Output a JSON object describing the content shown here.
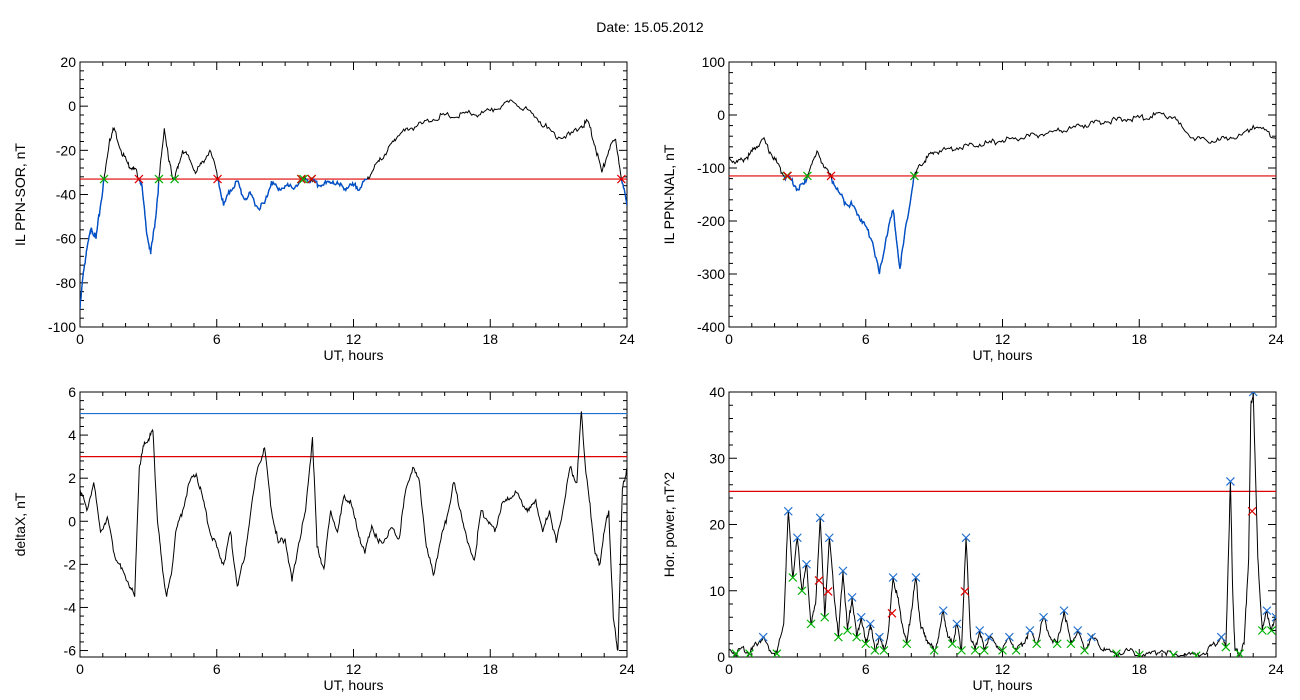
{
  "header": {
    "title": "Date:  15.05.2012"
  },
  "colors": {
    "trace": "#000000",
    "highlight": "#0050c8",
    "threshold_red": "#e00000",
    "threshold_blue": "#1f6fd0",
    "marker_green": "#00b000",
    "marker_red": "#e00000",
    "marker_blue": "#1f6fd0"
  },
  "chart_data": [
    {
      "type": "line",
      "xlabel": "UT, hours",
      "ylabel": "IL PPN-SOR, nT",
      "xlim": [
        0,
        24
      ],
      "ylim": [
        -100,
        20
      ],
      "xticks": [
        0,
        6,
        12,
        18,
        24
      ],
      "yticks": [
        -100,
        -80,
        -60,
        -40,
        -20,
        0,
        20
      ],
      "thresholds": [
        {
          "value": -33,
          "color": "red"
        }
      ],
      "series": [
        {
          "x": [
            0,
            0.15,
            0.3,
            0.5,
            0.7,
            0.9,
            1.1,
            1.3,
            1.5,
            1.8,
            2.1,
            2.3,
            2.5,
            2.7,
            2.9,
            3.1,
            3.3,
            3.5,
            3.7,
            3.9,
            4.1,
            4.3,
            4.5,
            4.8,
            5.1,
            5.4,
            5.7,
            6.0,
            6.3,
            6.6,
            6.9,
            7.2,
            7.5,
            7.8,
            8.1,
            8.4,
            8.7,
            9.0,
            9.3,
            9.6,
            9.9,
            10.2,
            10.5,
            10.8,
            11.1,
            11.4,
            11.7,
            12.0,
            12.3,
            12.6,
            12.9,
            13.2,
            13.5,
            13.8,
            14.1,
            14.5,
            15.0,
            15.5,
            16.0,
            16.5,
            17.0,
            17.5,
            18.0,
            18.5,
            19.0,
            19.5,
            20.0,
            20.5,
            21.0,
            21.5,
            22.0,
            22.3,
            22.6,
            22.9,
            23.2,
            23.5,
            23.8,
            24.0
          ],
          "y": [
            -92,
            -75,
            -65,
            -55,
            -60,
            -45,
            -30,
            -15,
            -10,
            -20,
            -26,
            -28,
            -30,
            -35,
            -55,
            -67,
            -52,
            -30,
            -10,
            -25,
            -33,
            -28,
            -20,
            -24,
            -30,
            -25,
            -20,
            -30,
            -45,
            -38,
            -34,
            -42,
            -40,
            -46,
            -44,
            -34,
            -38,
            -36,
            -37,
            -35,
            -33,
            -34,
            -36,
            -35,
            -34,
            -36,
            -37,
            -36,
            -37,
            -33,
            -28,
            -24,
            -20,
            -15,
            -12,
            -10,
            -8,
            -6,
            -4,
            -5,
            -3,
            -4,
            -2,
            0,
            2,
            -1,
            -5,
            -10,
            -14,
            -13,
            -9,
            -7,
            -18,
            -30,
            -20,
            -15,
            -35,
            -45
          ]
        }
      ]
    },
    {
      "type": "line",
      "xlabel": "UT, hours",
      "ylabel": "IL PPN-NAL, nT",
      "xlim": [
        0,
        24
      ],
      "ylim": [
        -400,
        100
      ],
      "xticks": [
        0,
        6,
        12,
        18,
        24
      ],
      "yticks": [
        -400,
        -300,
        -200,
        -100,
        0,
        100
      ],
      "thresholds": [
        {
          "value": -115,
          "color": "red"
        }
      ],
      "series": [
        {
          "x": [
            0,
            0.3,
            0.6,
            0.9,
            1.2,
            1.5,
            1.8,
            2.1,
            2.4,
            2.7,
            3.0,
            3.3,
            3.6,
            3.9,
            4.2,
            4.5,
            4.8,
            5.1,
            5.4,
            5.7,
            6.0,
            6.3,
            6.6,
            6.9,
            7.2,
            7.5,
            7.8,
            8.1,
            8.4,
            8.7,
            9.0,
            9.5,
            10.0,
            10.5,
            11.0,
            11.5,
            12.0,
            12.5,
            13.0,
            13.5,
            14.0,
            14.5,
            15.0,
            15.5,
            16.0,
            16.5,
            17.0,
            17.5,
            18.0,
            18.5,
            19.0,
            19.5,
            20.0,
            20.5,
            21.0,
            21.5,
            22.0,
            22.5,
            23.0,
            23.5,
            24.0
          ],
          "y": [
            -80,
            -90,
            -85,
            -75,
            -60,
            -45,
            -70,
            -90,
            -115,
            -120,
            -140,
            -130,
            -95,
            -70,
            -100,
            -120,
            -145,
            -165,
            -170,
            -190,
            -210,
            -240,
            -300,
            -230,
            -180,
            -290,
            -200,
            -120,
            -95,
            -80,
            -70,
            -65,
            -62,
            -58,
            -55,
            -52,
            -48,
            -45,
            -42,
            -38,
            -34,
            -30,
            -25,
            -20,
            -15,
            -12,
            -10,
            -8,
            -5,
            -3,
            2,
            -5,
            -30,
            -45,
            -50,
            -48,
            -42,
            -38,
            -20,
            -28,
            -45
          ]
        }
      ]
    },
    {
      "type": "line",
      "xlabel": "UT, hours",
      "ylabel": "deltaX, nT",
      "xlim": [
        0,
        24
      ],
      "ylim": [
        -6.3,
        6
      ],
      "xticks": [
        0,
        6,
        12,
        18,
        24
      ],
      "yticks": [
        -6,
        -4,
        -2,
        0,
        2,
        4,
        6
      ],
      "thresholds": [
        {
          "value": 5,
          "color": "blue"
        },
        {
          "value": 3,
          "color": "red"
        }
      ],
      "series": [
        {
          "x": [
            0,
            0.3,
            0.6,
            0.9,
            1.2,
            1.5,
            1.8,
            2.1,
            2.4,
            2.6,
            2.8,
            3.0,
            3.2,
            3.4,
            3.6,
            3.8,
            4.0,
            4.2,
            4.5,
            4.8,
            5.1,
            5.4,
            5.7,
            6.0,
            6.3,
            6.6,
            6.9,
            7.2,
            7.5,
            7.8,
            8.1,
            8.4,
            8.7,
            9.0,
            9.3,
            9.6,
            9.9,
            10.2,
            10.4,
            10.7,
            11.0,
            11.3,
            11.6,
            11.9,
            12.2,
            12.5,
            12.8,
            13.1,
            13.4,
            13.7,
            14.0,
            14.3,
            14.6,
            14.9,
            15.2,
            15.5,
            15.8,
            16.1,
            16.4,
            16.7,
            17.0,
            17.3,
            17.6,
            17.9,
            18.2,
            18.5,
            18.8,
            19.1,
            19.4,
            19.7,
            20.0,
            20.3,
            20.6,
            20.9,
            21.2,
            21.5,
            21.8,
            22.0,
            22.2,
            22.4,
            22.6,
            22.8,
            23.0,
            23.2,
            23.4,
            23.6,
            23.8,
            24.0
          ],
          "y": [
            1.5,
            0.5,
            1.8,
            -0.5,
            0.2,
            -1.5,
            -2.2,
            -2.8,
            -3.5,
            2.5,
            3.5,
            3.8,
            4.2,
            0,
            -2,
            -3.5,
            -2.5,
            -0.5,
            0.5,
            1.8,
            2.2,
            1,
            -0.5,
            -1.2,
            -2,
            -0.5,
            -3,
            -1.8,
            0.5,
            2.5,
            3.4,
            0.5,
            -1,
            -0.8,
            -2.8,
            -1,
            0.5,
            3.9,
            -1.2,
            -2.2,
            0.5,
            -0.5,
            1.2,
            0.8,
            -0.5,
            -1.5,
            -0.2,
            -1,
            -0.8,
            -0.3,
            -0.8,
            1.5,
            2.5,
            1.8,
            -1.2,
            -2.5,
            -1,
            0.2,
            1.8,
            0.5,
            -1,
            -1.8,
            0.5,
            0,
            -0.5,
            0.8,
            1,
            1.4,
            0.8,
            0.5,
            1,
            -0.5,
            0.5,
            -1,
            0.6,
            2.5,
            1.8,
            5.1,
            2.2,
            0.5,
            -1.5,
            -2,
            -0.5,
            0.5,
            -4.5,
            -6,
            1.5,
            2.5
          ]
        }
      ]
    },
    {
      "type": "line",
      "xlabel": "UT, hours",
      "ylabel": "Hor. power, nT^2",
      "xlim": [
        0,
        24
      ],
      "ylim": [
        0,
        40
      ],
      "xticks": [
        0,
        6,
        12,
        18,
        24
      ],
      "yticks": [
        0,
        10,
        20,
        30,
        40
      ],
      "thresholds": [
        {
          "value": 25,
          "color": "red"
        }
      ],
      "series": [
        {
          "x": [
            0,
            0.3,
            0.6,
            0.9,
            1.2,
            1.5,
            1.8,
            2.1,
            2.4,
            2.6,
            2.8,
            3.0,
            3.2,
            3.4,
            3.6,
            3.8,
            4.0,
            4.2,
            4.4,
            4.6,
            4.8,
            5.0,
            5.2,
            5.4,
            5.6,
            5.8,
            6.0,
            6.2,
            6.4,
            6.6,
            6.8,
            7.0,
            7.2,
            7.4,
            7.6,
            7.8,
            8.0,
            8.2,
            8.4,
            8.6,
            8.8,
            9.0,
            9.2,
            9.4,
            9.6,
            9.8,
            10.0,
            10.2,
            10.4,
            10.6,
            10.8,
            11.0,
            11.2,
            11.4,
            11.7,
            12.0,
            12.3,
            12.6,
            12.9,
            13.2,
            13.5,
            13.8,
            14.1,
            14.4,
            14.7,
            15.0,
            15.3,
            15.6,
            15.9,
            16.2,
            16.5,
            17.0,
            17.5,
            18.0,
            18.5,
            19.0,
            19.5,
            20.0,
            20.5,
            21.0,
            21.3,
            21.6,
            21.8,
            22.0,
            22.1,
            22.2,
            22.4,
            22.6,
            22.8,
            22.9,
            23.0,
            23.2,
            23.4,
            23.6,
            23.8,
            24.0
          ],
          "y": [
            1,
            0.5,
            1.5,
            0.5,
            2,
            3,
            1,
            0.5,
            5,
            22,
            12,
            18,
            10,
            14,
            5,
            8,
            21,
            6,
            18,
            10,
            3,
            13,
            4,
            9,
            3,
            6,
            2,
            5,
            1,
            3,
            1,
            4,
            12,
            9,
            5,
            2,
            7,
            12,
            5,
            3,
            2,
            1,
            3,
            7,
            3,
            2,
            5,
            1,
            18,
            3,
            1,
            4,
            1,
            3,
            2,
            1,
            3,
            1,
            2,
            4,
            2,
            6,
            3,
            2,
            7,
            2,
            4,
            1,
            3,
            2,
            1,
            0.5,
            1,
            0.3,
            0.5,
            1,
            0.3,
            0.5,
            0.2,
            1,
            2,
            3,
            1.5,
            26.5,
            10,
            1,
            0.5,
            2,
            15,
            38,
            40,
            15,
            4,
            7,
            4,
            6
          ]
        }
      ]
    }
  ]
}
